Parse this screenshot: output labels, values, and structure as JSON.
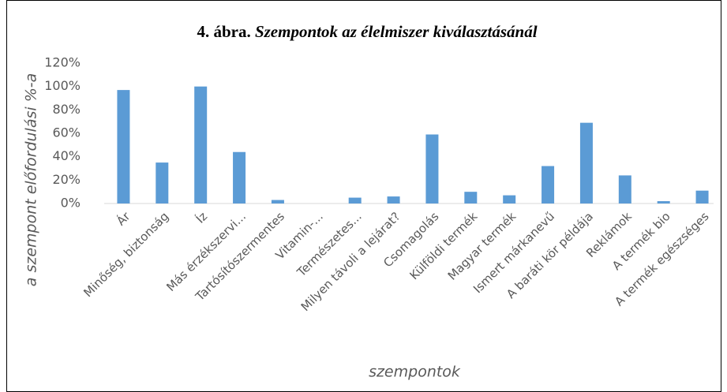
{
  "chart_data": {
    "type": "bar",
    "figure_label": "4. ábra.",
    "title": "Szempontok az élelmiszer kiválasztásánál",
    "x_label": "szempontok",
    "y_label": "a szempont előfordulási %-a",
    "categories": [
      "Ár",
      "Minőség, biztonság",
      "Íz",
      "Más érzékszervi...",
      "Tartósítószermentes",
      "Vitamin-...",
      "Természetes...",
      "Milyen távoli a lejárat?",
      "Csomagolás",
      "Külföldi termék",
      "Magyar termék",
      "Ismert márkanevű",
      "A baráti kör példája",
      "Reklámok",
      "A termék bio",
      "A termék egészséges"
    ],
    "values": [
      97,
      35,
      100,
      44,
      3,
      0,
      5,
      6,
      59,
      10,
      7,
      32,
      69,
      24,
      2,
      11
    ],
    "color": "#5b9bd5",
    "ylim": [
      0,
      120
    ],
    "yticks": [
      {
        "value": 0,
        "label": "0%"
      },
      {
        "value": 20,
        "label": "20%"
      },
      {
        "value": 40,
        "label": "40%"
      },
      {
        "value": 60,
        "label": "60%"
      },
      {
        "value": 80,
        "label": "80%"
      },
      {
        "value": 100,
        "label": "100%"
      },
      {
        "value": 120,
        "label": "120%"
      }
    ],
    "grid": false
  }
}
